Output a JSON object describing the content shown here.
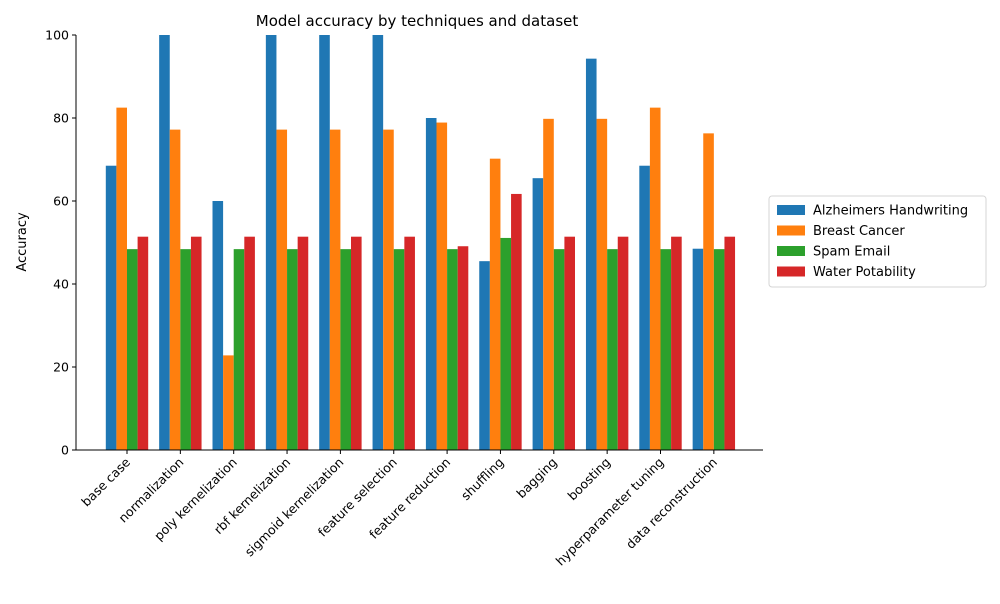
{
  "chart_data": {
    "type": "bar",
    "title": "Model accuracy by techniques and dataset",
    "xlabel": "",
    "ylabel": "Accuracy",
    "ylim": [
      0,
      100
    ],
    "yticks": [
      0,
      20,
      40,
      60,
      80,
      100
    ],
    "grid": false,
    "legend_position": "center-right (outside)",
    "categories": [
      "base case",
      "normalization",
      "poly kernelization",
      "rbf kernelization",
      "sigmoid kernelization",
      "feature selection",
      "feature reduction",
      "shuffling",
      "bagging",
      "boosting",
      "hyperparameter tuning",
      "data reconstruction"
    ],
    "series": [
      {
        "name": "Alzheimers Handwriting",
        "color": "#1f77b4",
        "values": [
          68.5,
          100,
          60,
          100,
          100,
          100,
          80,
          45.5,
          65.5,
          94.3,
          68.5,
          48.5
        ]
      },
      {
        "name": "Breast Cancer",
        "color": "#ff7f0e",
        "values": [
          82.5,
          77.2,
          22.8,
          77.2,
          77.2,
          77.2,
          78.9,
          70.2,
          79.8,
          79.8,
          82.5,
          76.3
        ]
      },
      {
        "name": "Spam Email",
        "color": "#2ca02c",
        "values": [
          48.4,
          48.4,
          48.4,
          48.4,
          48.4,
          48.4,
          48.4,
          51.1,
          48.4,
          48.4,
          48.4,
          48.4
        ]
      },
      {
        "name": "Water Potability",
        "color": "#d62728",
        "values": [
          51.4,
          51.4,
          51.4,
          51.4,
          51.4,
          51.4,
          49.1,
          61.7,
          51.4,
          51.4,
          51.4,
          51.4
        ]
      }
    ]
  }
}
